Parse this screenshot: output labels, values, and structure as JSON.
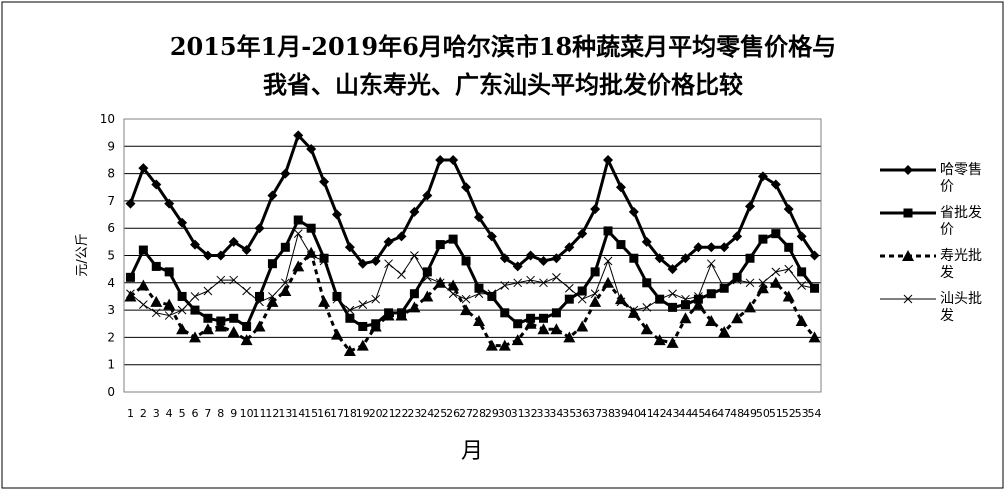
{
  "chart_data": {
    "type": "line",
    "title_lines": [
      "2015年1月-2019年6月哈尔滨市18种蔬菜月平均零售价格与",
      "我省、山东寿光、广东汕头平均批发价格比较"
    ],
    "xlabel": "月",
    "ylabel": "元/公斤",
    "ylim": [
      0,
      10
    ],
    "yticks": [
      "0",
      "1",
      "2",
      "3",
      "4",
      "5",
      "6",
      "7",
      "8",
      "9",
      "10"
    ],
    "grid": true,
    "legend_position": "right",
    "categories": [
      "1",
      "2",
      "3",
      "4",
      "5",
      "6",
      "7",
      "8",
      "9",
      "10",
      "11",
      "12",
      "13",
      "14",
      "15",
      "16",
      "17",
      "18",
      "19",
      "20",
      "21",
      "22",
      "23",
      "24",
      "25",
      "26",
      "27",
      "28",
      "29",
      "30",
      "31",
      "32",
      "33",
      "34",
      "35",
      "36",
      "37",
      "38",
      "39",
      "40",
      "41",
      "42",
      "43",
      "44",
      "45",
      "46",
      "47",
      "48",
      "49",
      "50",
      "51",
      "52",
      "53",
      "54"
    ],
    "series": [
      {
        "name": "哈零售价",
        "marker": "diamond",
        "line": "solid-thick",
        "values": [
          6.9,
          8.2,
          7.6,
          6.9,
          6.2,
          5.4,
          5.0,
          5.0,
          5.5,
          5.2,
          6.0,
          7.2,
          8.0,
          9.4,
          8.9,
          7.7,
          6.5,
          5.3,
          4.7,
          4.8,
          5.5,
          5.7,
          6.6,
          7.2,
          8.5,
          8.5,
          7.5,
          6.4,
          5.7,
          4.9,
          4.6,
          5.0,
          4.8,
          4.9,
          5.3,
          5.8,
          6.7,
          8.5,
          7.5,
          6.6,
          5.5,
          4.9,
          4.5,
          4.9,
          5.3,
          5.3,
          5.3,
          5.7,
          6.8,
          7.9,
          7.6,
          6.7,
          5.7,
          5.0
        ]
      },
      {
        "name": "省批发价",
        "marker": "square",
        "line": "solid-thick",
        "values": [
          4.2,
          5.2,
          4.6,
          4.4,
          3.5,
          3.0,
          2.7,
          2.6,
          2.7,
          2.4,
          3.5,
          4.7,
          5.3,
          6.3,
          6.0,
          4.9,
          3.5,
          2.7,
          2.4,
          2.5,
          2.9,
          2.9,
          3.6,
          4.4,
          5.4,
          5.6,
          4.8,
          3.8,
          3.5,
          2.9,
          2.5,
          2.7,
          2.7,
          2.9,
          3.4,
          3.7,
          4.4,
          5.9,
          5.4,
          4.9,
          4.0,
          3.4,
          3.1,
          3.2,
          3.4,
          3.6,
          3.8,
          4.2,
          4.9,
          5.6,
          5.8,
          5.3,
          4.4,
          3.8
        ]
      },
      {
        "name": "寿光批发",
        "marker": "triangle",
        "line": "dashed",
        "values": [
          3.5,
          3.9,
          3.3,
          3.2,
          2.3,
          2.0,
          2.3,
          2.4,
          2.2,
          1.9,
          2.4,
          3.3,
          3.7,
          4.6,
          5.1,
          3.3,
          2.1,
          1.5,
          1.7,
          2.4,
          2.8,
          2.8,
          3.1,
          3.5,
          4.0,
          3.9,
          3.0,
          2.6,
          1.7,
          1.7,
          1.9,
          2.5,
          2.3,
          2.3,
          2.0,
          2.4,
          3.3,
          4.0,
          3.4,
          2.9,
          2.3,
          1.9,
          1.8,
          2.7,
          3.2,
          2.6,
          2.2,
          2.7,
          3.1,
          3.8,
          4.0,
          3.5,
          2.6,
          2.0
        ]
      },
      {
        "name": "汕头批发",
        "marker": "x",
        "line": "solid-thin",
        "values": [
          3.6,
          3.2,
          2.9,
          2.8,
          3.0,
          3.5,
          3.7,
          4.1,
          4.1,
          3.7,
          3.3,
          3.5,
          4.0,
          5.8,
          5.0,
          4.8,
          3.4,
          3.0,
          3.2,
          3.4,
          4.7,
          4.3,
          5.0,
          4.2,
          4.0,
          3.6,
          3.4,
          3.6,
          3.6,
          3.9,
          4.0,
          4.1,
          4.0,
          4.2,
          3.8,
          3.4,
          3.6,
          4.8,
          3.3,
          3.0,
          3.1,
          3.4,
          3.6,
          3.4,
          3.5,
          4.7,
          3.8,
          4.1,
          4.0,
          4.0,
          4.4,
          4.5,
          3.9,
          3.8
        ]
      }
    ],
    "legend_lines": [
      [
        "哈零售",
        "价"
      ],
      [
        "省批发",
        "价"
      ],
      [
        "寿光批",
        "发"
      ],
      [
        "汕头批",
        "发"
      ]
    ]
  }
}
